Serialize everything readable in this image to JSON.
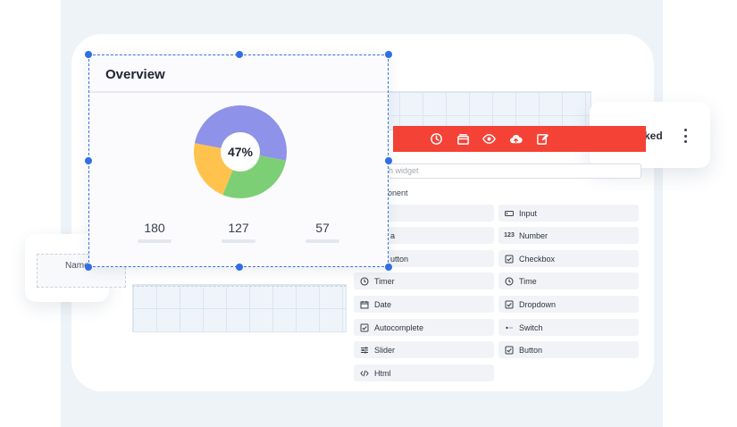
{
  "overview": {
    "title": "Overview",
    "progress_label": "47%",
    "progress": 0.47,
    "stats": [
      "180",
      "127",
      "57"
    ]
  },
  "chart_colors": {
    "purple": "#8e92e8",
    "green": "#7dcf76",
    "yellow": "#ffc34d"
  },
  "toolbar": {
    "color": "#f44336",
    "icons": [
      "clock-icon",
      "layers-icon",
      "eye-icon",
      "cloud-upload-icon",
      "edit-icon"
    ]
  },
  "right_card": {
    "label": "ked"
  },
  "name_field": {
    "label": "Name"
  },
  "widgets_panel": {
    "search_placeholder": "h widget",
    "section_label": "onent",
    "left_column": [
      "",
      "a",
      "utton",
      "Timer",
      "Date",
      "Autocomplete",
      "Slider",
      "Html"
    ],
    "right_column": [
      "Input",
      "Number",
      "Checkbox",
      "Time",
      "Dropdown",
      "Switch",
      "Button"
    ],
    "number_icon_text": "123"
  }
}
